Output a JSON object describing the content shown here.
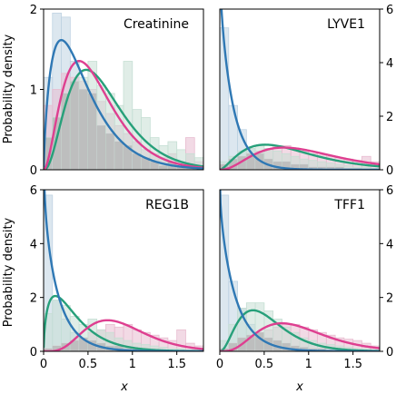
{
  "figure": {
    "ylabel": "Probability density",
    "xlabel": "x"
  },
  "colors": {
    "blue": "#2f78b4",
    "pink": "#de3f90",
    "green": "#27a07a",
    "hist_blue": "#bfd3e2",
    "hist_pink": "#e8bcd0",
    "hist_green": "#c6dfd4",
    "hist_overlap": "#b5b5b5"
  },
  "chart_data": [
    {
      "type": "histogram+density",
      "title": "Creatinine",
      "xlim": [
        0,
        1.8
      ],
      "ylim": [
        0,
        2
      ],
      "yticks": [
        0,
        1,
        2
      ],
      "xticks": [],
      "y_axis_side": "left",
      "bin_width": 0.1,
      "hist": {
        "blue": [
          1.15,
          1.95,
          1.9,
          1.35,
          1.0,
          0.95,
          0.55,
          0.45,
          0.35,
          0.3,
          0.2,
          0.15,
          0.1,
          0.05,
          0.1,
          0.05,
          0.05,
          0.0
        ],
        "pink": [
          0.8,
          1.0,
          1.2,
          1.15,
          1.1,
          1.0,
          0.85,
          0.7,
          0.55,
          0.45,
          0.35,
          0.25,
          0.2,
          0.15,
          0.2,
          0.1,
          0.4,
          0.1
        ],
        "green": [
          0.4,
          0.65,
          0.95,
          1.1,
          1.15,
          1.35,
          1.05,
          0.95,
          0.8,
          1.35,
          0.75,
          0.65,
          0.4,
          0.3,
          0.35,
          0.25,
          0.2,
          0.15
        ]
      },
      "curves": {
        "blue": {
          "dist": "gamma",
          "shape": 1.8,
          "scale": 0.25
        },
        "pink": {
          "dist": "gamma",
          "shape": 3.0,
          "scale": 0.2
        },
        "green": {
          "dist": "gamma",
          "shape": 3.4,
          "scale": 0.2
        }
      }
    },
    {
      "type": "histogram+density",
      "title": "LYVE1",
      "xlim": [
        0,
        1.8
      ],
      "ylim": [
        0,
        6
      ],
      "yticks": [
        0,
        2,
        4,
        6
      ],
      "xticks": [],
      "y_axis_side": "right",
      "bin_width": 0.1,
      "hist": {
        "blue": [
          5.3,
          2.4,
          1.5,
          0.8,
          0.6,
          0.4,
          0.3,
          0.3,
          0.2,
          0.2,
          0.1,
          0.1,
          0.1,
          0.1,
          0.05,
          0.05,
          0.0,
          0.0
        ],
        "pink": [
          0.2,
          0.4,
          0.5,
          0.6,
          0.7,
          0.8,
          0.9,
          0.9,
          0.8,
          0.7,
          0.6,
          0.55,
          0.5,
          0.45,
          0.4,
          0.35,
          0.5,
          0.3
        ],
        "green": [
          0.3,
          0.5,
          0.7,
          0.8,
          0.9,
          0.8,
          0.7,
          0.6,
          0.5,
          0.4,
          0.35,
          0.3,
          0.25,
          0.2,
          0.15,
          0.1,
          0.1,
          0.05
        ]
      },
      "curves": {
        "blue": {
          "dist": "gamma",
          "shape": 0.95,
          "scale": 0.16
        },
        "pink": {
          "dist": "gamma",
          "shape": 3.4,
          "scale": 0.3
        },
        "green": {
          "dist": "gamma",
          "shape": 2.6,
          "scale": 0.32
        }
      }
    },
    {
      "type": "histogram+density",
      "title": "REG1B",
      "xlim": [
        0,
        1.8
      ],
      "ylim": [
        0,
        6
      ],
      "yticks": [
        0,
        2,
        4,
        6
      ],
      "xticks": [
        0,
        0.5,
        1,
        1.5
      ],
      "xticklabels": [
        "0",
        "0.5",
        "1",
        "1.5"
      ],
      "y_axis_side": "left",
      "bin_width": 0.1,
      "hist": {
        "blue": [
          5.8,
          1.9,
          1.2,
          0.7,
          0.5,
          0.4,
          0.3,
          0.2,
          0.2,
          0.1,
          0.1,
          0.1,
          0.05,
          0.05,
          0.0,
          0.0,
          0.0,
          0.0
        ],
        "pink": [
          0.1,
          0.2,
          0.3,
          0.4,
          0.5,
          0.7,
          0.8,
          1.0,
          0.9,
          1.0,
          0.8,
          0.7,
          0.6,
          0.5,
          0.4,
          0.8,
          0.3,
          0.2
        ],
        "green": [
          1.4,
          1.9,
          1.7,
          1.3,
          1.0,
          1.2,
          0.8,
          0.7,
          0.5,
          0.4,
          0.3,
          0.25,
          0.2,
          0.15,
          0.1,
          0.1,
          0.05,
          0.05
        ]
      },
      "curves": {
        "blue": {
          "dist": "gamma",
          "shape": 0.9,
          "scale": 0.2
        },
        "pink": {
          "dist": "gamma",
          "shape": 5.5,
          "scale": 0.16
        },
        "green": {
          "dist": "gamma",
          "shape": 1.6,
          "scale": 0.22
        }
      }
    },
    {
      "type": "histogram+density",
      "title": "TFF1",
      "xlim": [
        0,
        1.8
      ],
      "ylim": [
        0,
        6
      ],
      "yticks": [
        0,
        2,
        4,
        6
      ],
      "xticks": [
        0,
        0.5,
        1,
        1.5
      ],
      "xticklabels": [
        "0",
        "0.5",
        "1",
        "1.5"
      ],
      "y_axis_side": "right",
      "bin_width": 0.1,
      "hist": {
        "blue": [
          5.8,
          2.6,
          1.6,
          1.0,
          0.7,
          0.5,
          0.4,
          0.3,
          0.2,
          0.15,
          0.1,
          0.1,
          0.05,
          0.05,
          0.0,
          0.0,
          0.0,
          0.0
        ],
        "pink": [
          0.1,
          0.3,
          0.5,
          0.6,
          0.7,
          0.8,
          0.9,
          1.0,
          1.0,
          0.9,
          0.8,
          0.7,
          0.6,
          0.5,
          0.45,
          0.4,
          0.3,
          0.2
        ],
        "green": [
          0.4,
          1.0,
          1.6,
          1.8,
          1.8,
          1.5,
          1.2,
          0.9,
          0.7,
          0.5,
          0.4,
          0.3,
          0.25,
          0.2,
          0.15,
          0.1,
          0.1,
          0.05
        ]
      },
      "curves": {
        "blue": {
          "dist": "gamma",
          "shape": 0.95,
          "scale": 0.2
        },
        "pink": {
          "dist": "gamma",
          "shape": 4.5,
          "scale": 0.2
        },
        "green": {
          "dist": "gamma",
          "shape": 3.2,
          "scale": 0.17
        }
      }
    }
  ]
}
